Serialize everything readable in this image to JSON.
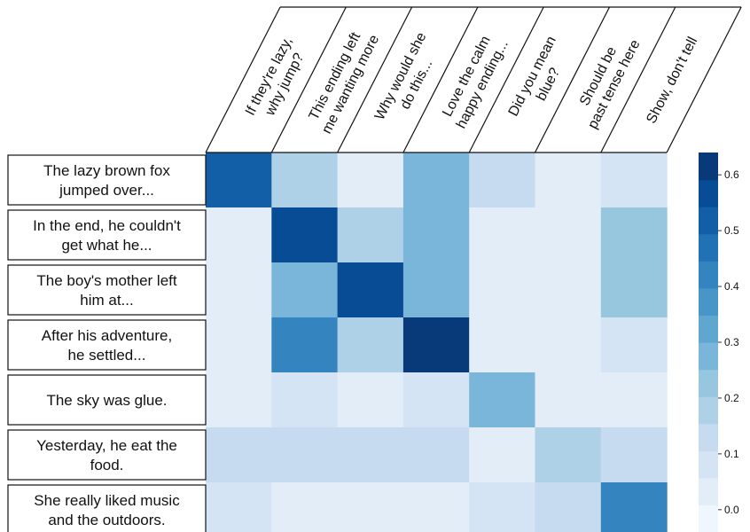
{
  "chart_data": {
    "type": "heatmap",
    "title": "",
    "xlabel": "",
    "ylabel": "",
    "columns": [
      [
        "If they're lazy,",
        "why jump?"
      ],
      [
        "This ending left",
        "me wanting more"
      ],
      [
        "Why would she",
        "do this..."
      ],
      [
        "Love the calm",
        "happy ending..."
      ],
      [
        "Did you mean",
        "blue?"
      ],
      [
        "Should be",
        "past tense here"
      ],
      [
        "Show, don't tell"
      ]
    ],
    "rows": [
      [
        "The lazy brown fox",
        "jumped over..."
      ],
      [
        "In the end, he couldn't",
        "get what he..."
      ],
      [
        "The boy's mother left",
        "him at..."
      ],
      [
        "After his adventure,",
        "he settled..."
      ],
      [
        "The sky was glue."
      ],
      [
        "Yesterday, he eat the",
        "food."
      ],
      [
        "She really liked music",
        "and the outdoors."
      ]
    ],
    "values": [
      [
        0.5,
        0.2,
        0.05,
        0.3,
        0.12,
        0.05,
        0.1
      ],
      [
        0.01,
        0.55,
        0.2,
        0.3,
        0.05,
        0.05,
        0.22
      ],
      [
        0.05,
        0.3,
        0.55,
        0.3,
        0.01,
        0.05,
        0.22
      ],
      [
        0.05,
        0.4,
        0.2,
        0.62,
        0.05,
        0.05,
        0.1
      ],
      [
        0.05,
        0.1,
        0.02,
        0.08,
        0.3,
        0.05,
        0.05
      ],
      [
        0.15,
        0.15,
        0.15,
        0.15,
        0.02,
        0.2,
        0.15
      ],
      [
        0.1,
        0.02,
        0.02,
        0.05,
        0.1,
        0.15,
        0.4
      ]
    ],
    "colorbar": {
      "ticks": [
        "0.0",
        "0.1",
        "0.2",
        "0.3",
        "0.4",
        "0.5",
        "0.6"
      ],
      "vmin": -0.04,
      "vmax": 0.64,
      "levels": 14
    },
    "colormap": [
      "#f7fbff",
      "#deebf7",
      "#c6dbef",
      "#9ecae1",
      "#6baed6",
      "#4292c6",
      "#2171b5",
      "#08519c",
      "#08306b"
    ]
  }
}
